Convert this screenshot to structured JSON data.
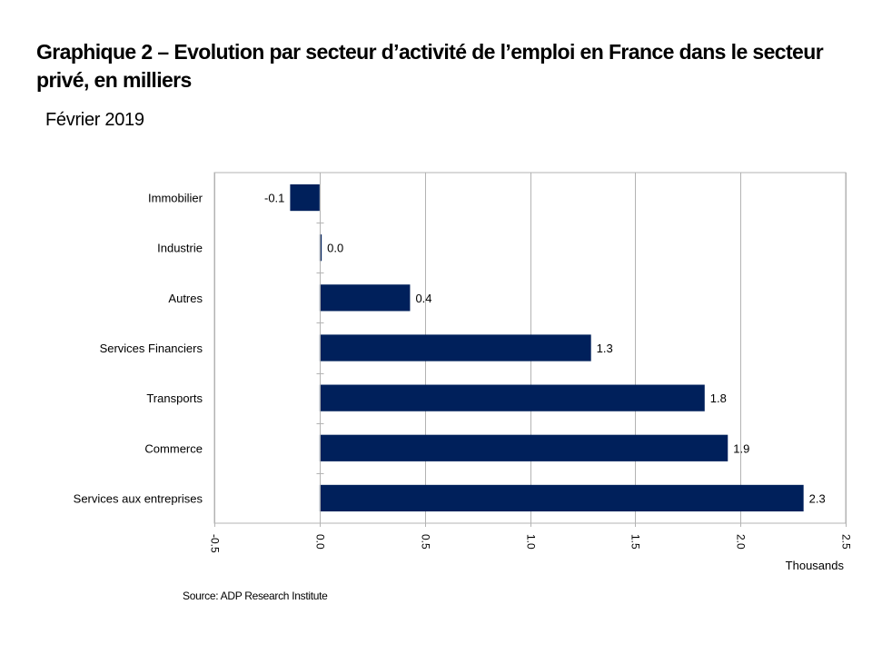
{
  "page": {
    "title": "Graphique 2 – Evolution par secteur d’activité de l’emploi en France dans le secteur privé, en milliers",
    "subtitle": "Février 2019",
    "source": "Source: ADP Research Institute"
  },
  "chart_data": {
    "type": "bar",
    "orientation": "horizontal",
    "title": "Graphique 2 – Evolution par secteur d’activité de l’emploi en France dans le secteur privé, en milliers",
    "subtitle": "Février 2019",
    "categories": [
      "Immobilier",
      "Industrie",
      "Autres",
      "Services Financiers",
      "Transports",
      "Commerce",
      "Services aux entreprises"
    ],
    "values": [
      -0.14,
      0.01,
      0.43,
      1.29,
      1.83,
      1.94,
      2.3
    ],
    "data_labels": [
      "-0.1",
      "0.0",
      "0.4",
      "1.3",
      "1.8",
      "1.9",
      "2.3"
    ],
    "xlabel": "Thousands",
    "ylabel": "",
    "xlim": [
      -0.5,
      2.5
    ],
    "xticks": [
      "-0.5",
      "0.0",
      "0.5",
      "1.0",
      "1.5",
      "2.0",
      "2.5"
    ],
    "tick_values": [
      -0.5,
      0,
      0.5,
      1.0,
      1.5,
      2.0,
      2.5
    ],
    "grid": true,
    "legend": "none",
    "bar_color": "#00205b",
    "source": "Source: ADP Research Institute"
  }
}
